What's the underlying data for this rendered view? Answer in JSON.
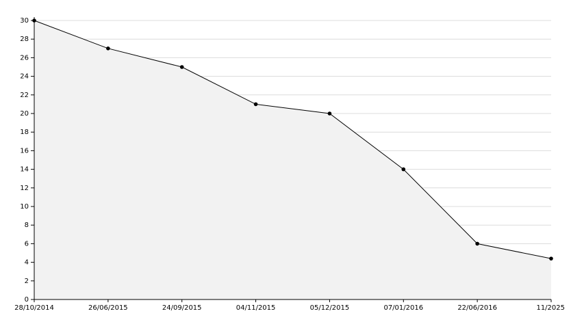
{
  "chart_data": {
    "type": "area",
    "categories": [
      "28/10/2014",
      "26/06/2015",
      "24/09/2015",
      "04/11/2015",
      "05/12/2015",
      "07/01/2016",
      "22/06/2016",
      "11/2025"
    ],
    "values": [
      30,
      27,
      25,
      21,
      20,
      14,
      6,
      4.4
    ],
    "color": "#000000",
    "fill": "#f2f2f2",
    "ylim": [
      0,
      30
    ],
    "yticks": [
      0,
      2,
      4,
      6,
      8,
      10,
      12,
      14,
      16,
      18,
      20,
      22,
      24,
      26,
      28,
      30
    ],
    "grid": true
  }
}
